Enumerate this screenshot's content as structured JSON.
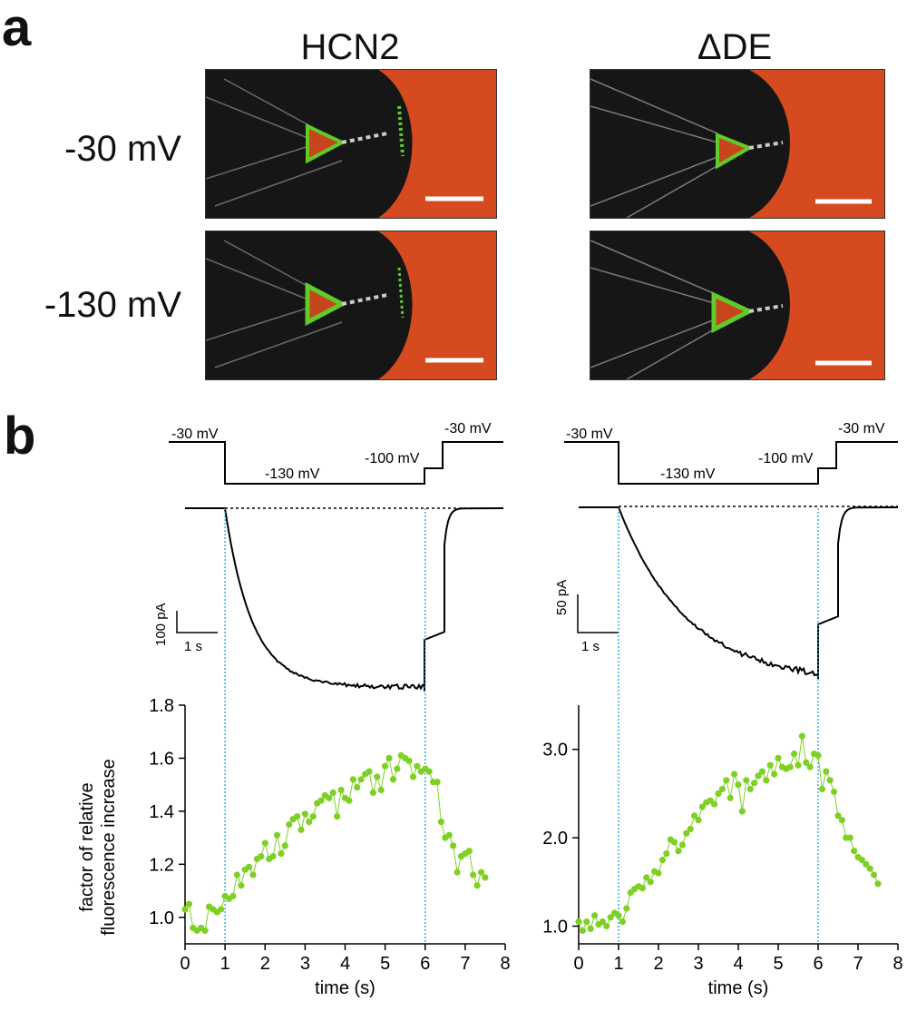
{
  "panels": {
    "a": "a",
    "b": "b"
  },
  "columns": {
    "left": "HCN2",
    "right": "ΔDE"
  },
  "rows": {
    "top": "-30 mV",
    "bottom": "-130 mV"
  },
  "protocol": {
    "labels": {
      "hold": "-30 mV",
      "step": "-130 mV",
      "tail": "-100 mV",
      "return": "-30 mV"
    },
    "voltages_mV": [
      -30,
      -130,
      -100,
      -30
    ],
    "step_times_s": [
      0,
      1,
      6,
      6.5,
      8
    ]
  },
  "scale_bars": {
    "left": {
      "current": "100 pA",
      "time": "1 s"
    },
    "right": {
      "current": "50 pA",
      "time": "1 s"
    }
  },
  "colors": {
    "fluor": "#7fd024",
    "guide": "#1aa3d6",
    "trace": "#000000",
    "bg_red": "#d64a1f"
  },
  "chart_data": [
    {
      "type": "scatter",
      "title": "HCN2",
      "xlabel": "time (s)",
      "ylabel": "factor of relative fluorescence increase",
      "xlim": [
        0,
        8
      ],
      "ylim": [
        0.9,
        1.8
      ],
      "xticks": [
        0,
        1,
        2,
        3,
        4,
        5,
        6,
        7,
        8
      ],
      "yticks": [
        1.0,
        1.2,
        1.4,
        1.6,
        1.8
      ],
      "ytick_labels": [
        "1.0",
        "1.2",
        "1.4",
        "1.6",
        "1.8"
      ],
      "vlines": [
        1,
        6
      ],
      "series": [
        {
          "name": "fluorescence",
          "x": [
            0.0,
            0.1,
            0.2,
            0.3,
            0.4,
            0.5,
            0.6,
            0.7,
            0.8,
            0.9,
            1.0,
            1.1,
            1.2,
            1.3,
            1.4,
            1.5,
            1.6,
            1.7,
            1.8,
            1.9,
            2.0,
            2.1,
            2.2,
            2.3,
            2.4,
            2.5,
            2.6,
            2.7,
            2.8,
            2.9,
            3.0,
            3.1,
            3.2,
            3.3,
            3.4,
            3.5,
            3.6,
            3.7,
            3.8,
            3.9,
            4.0,
            4.1,
            4.2,
            4.3,
            4.4,
            4.5,
            4.6,
            4.7,
            4.8,
            4.9,
            5.0,
            5.1,
            5.2,
            5.3,
            5.4,
            5.5,
            5.6,
            5.7,
            5.8,
            5.9,
            6.0,
            6.1,
            6.2,
            6.3,
            6.4,
            6.5,
            6.6,
            6.7,
            6.8,
            6.9,
            7.0,
            7.1,
            7.2,
            7.3,
            7.4,
            7.5
          ],
          "values": [
            1.03,
            1.05,
            0.96,
            0.95,
            0.96,
            0.95,
            1.04,
            1.03,
            1.02,
            1.03,
            1.08,
            1.07,
            1.08,
            1.16,
            1.12,
            1.18,
            1.19,
            1.16,
            1.22,
            1.23,
            1.28,
            1.22,
            1.23,
            1.31,
            1.24,
            1.27,
            1.35,
            1.37,
            1.38,
            1.33,
            1.39,
            1.36,
            1.38,
            1.43,
            1.44,
            1.46,
            1.45,
            1.47,
            1.38,
            1.48,
            1.45,
            1.44,
            1.52,
            1.49,
            1.52,
            1.54,
            1.55,
            1.47,
            1.53,
            1.48,
            1.57,
            1.6,
            1.52,
            1.56,
            1.61,
            1.6,
            1.59,
            1.53,
            1.57,
            1.55,
            1.56,
            1.55,
            1.51,
            1.51,
            1.36,
            1.3,
            1.31,
            1.27,
            1.17,
            1.23,
            1.24,
            1.25,
            1.16,
            1.12,
            1.17,
            1.15
          ]
        }
      ]
    },
    {
      "type": "scatter",
      "title": "ΔDE",
      "xlabel": "time (s)",
      "ylabel": "",
      "xlim": [
        0,
        8
      ],
      "ylim": [
        0.8,
        3.5
      ],
      "xticks": [
        0,
        1,
        2,
        3,
        4,
        5,
        6,
        7,
        8
      ],
      "yticks": [
        1.0,
        2.0,
        3.0
      ],
      "ytick_labels": [
        "1.0",
        "2.0",
        "3.0"
      ],
      "vlines": [
        1,
        6
      ],
      "series": [
        {
          "name": "fluorescence",
          "x": [
            0.0,
            0.1,
            0.2,
            0.3,
            0.4,
            0.5,
            0.6,
            0.7,
            0.8,
            0.9,
            1.0,
            1.1,
            1.2,
            1.3,
            1.4,
            1.5,
            1.6,
            1.7,
            1.8,
            1.9,
            2.0,
            2.1,
            2.2,
            2.3,
            2.4,
            2.5,
            2.6,
            2.7,
            2.8,
            2.9,
            3.0,
            3.1,
            3.2,
            3.3,
            3.4,
            3.5,
            3.6,
            3.7,
            3.8,
            3.9,
            4.0,
            4.1,
            4.2,
            4.3,
            4.4,
            4.5,
            4.6,
            4.7,
            4.8,
            4.9,
            5.0,
            5.1,
            5.2,
            5.3,
            5.4,
            5.5,
            5.6,
            5.7,
            5.8,
            5.9,
            6.0,
            6.1,
            6.2,
            6.3,
            6.4,
            6.5,
            6.6,
            6.7,
            6.8,
            6.9,
            7.0,
            7.1,
            7.2,
            7.3,
            7.4,
            7.5
          ],
          "values": [
            1.05,
            0.95,
            1.05,
            0.97,
            1.12,
            1.02,
            1.05,
            1.0,
            1.1,
            1.15,
            1.12,
            1.05,
            1.2,
            1.38,
            1.42,
            1.45,
            1.43,
            1.55,
            1.5,
            1.62,
            1.6,
            1.75,
            1.82,
            1.98,
            1.95,
            1.85,
            1.92,
            2.05,
            2.1,
            2.25,
            2.2,
            2.35,
            2.4,
            2.42,
            2.38,
            2.5,
            2.55,
            2.65,
            2.45,
            2.72,
            2.6,
            2.3,
            2.65,
            2.55,
            2.62,
            2.7,
            2.75,
            2.65,
            2.82,
            2.72,
            2.9,
            2.8,
            2.78,
            2.8,
            2.95,
            2.82,
            3.15,
            2.85,
            2.8,
            2.95,
            2.93,
            2.55,
            2.75,
            2.65,
            2.52,
            2.25,
            2.2,
            2.0,
            2.0,
            1.85,
            1.78,
            1.75,
            1.7,
            1.65,
            1.58,
            1.48
          ]
        }
      ]
    }
  ]
}
